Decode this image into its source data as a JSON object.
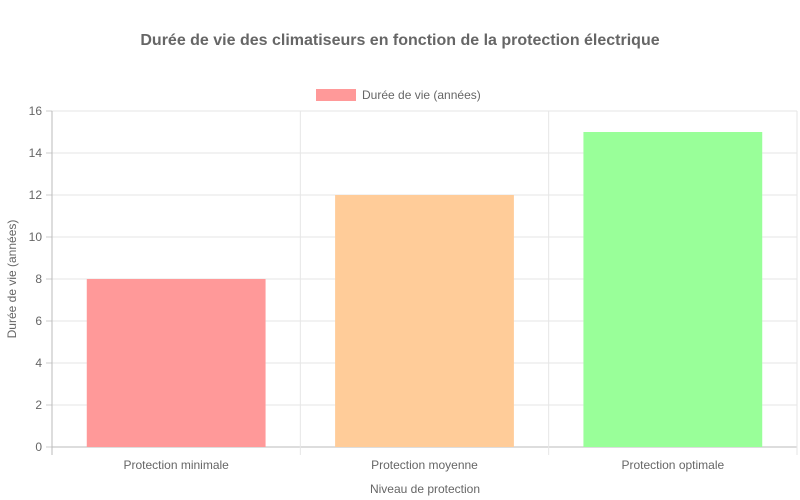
{
  "chart_data": {
    "type": "bar",
    "title": "Durée de vie des climatiseurs en fonction de la protection électrique",
    "categories": [
      "Protection minimale",
      "Protection moyenne",
      "Protection optimale"
    ],
    "series": [
      {
        "name": "Durée de vie (années)",
        "values": [
          8,
          12,
          15
        ],
        "colors": [
          "#ff9999",
          "#ffcc99",
          "#99ff99"
        ]
      }
    ],
    "xlabel": "Niveau de protection",
    "ylabel": "Durée de vie (années)",
    "ylim": [
      0,
      16
    ],
    "yticks": [
      "0",
      "2",
      "4",
      "6",
      "8",
      "10",
      "12",
      "14",
      "16"
    ],
    "grid": true,
    "legend_position": "top",
    "legend_color": "#ff9999"
  }
}
